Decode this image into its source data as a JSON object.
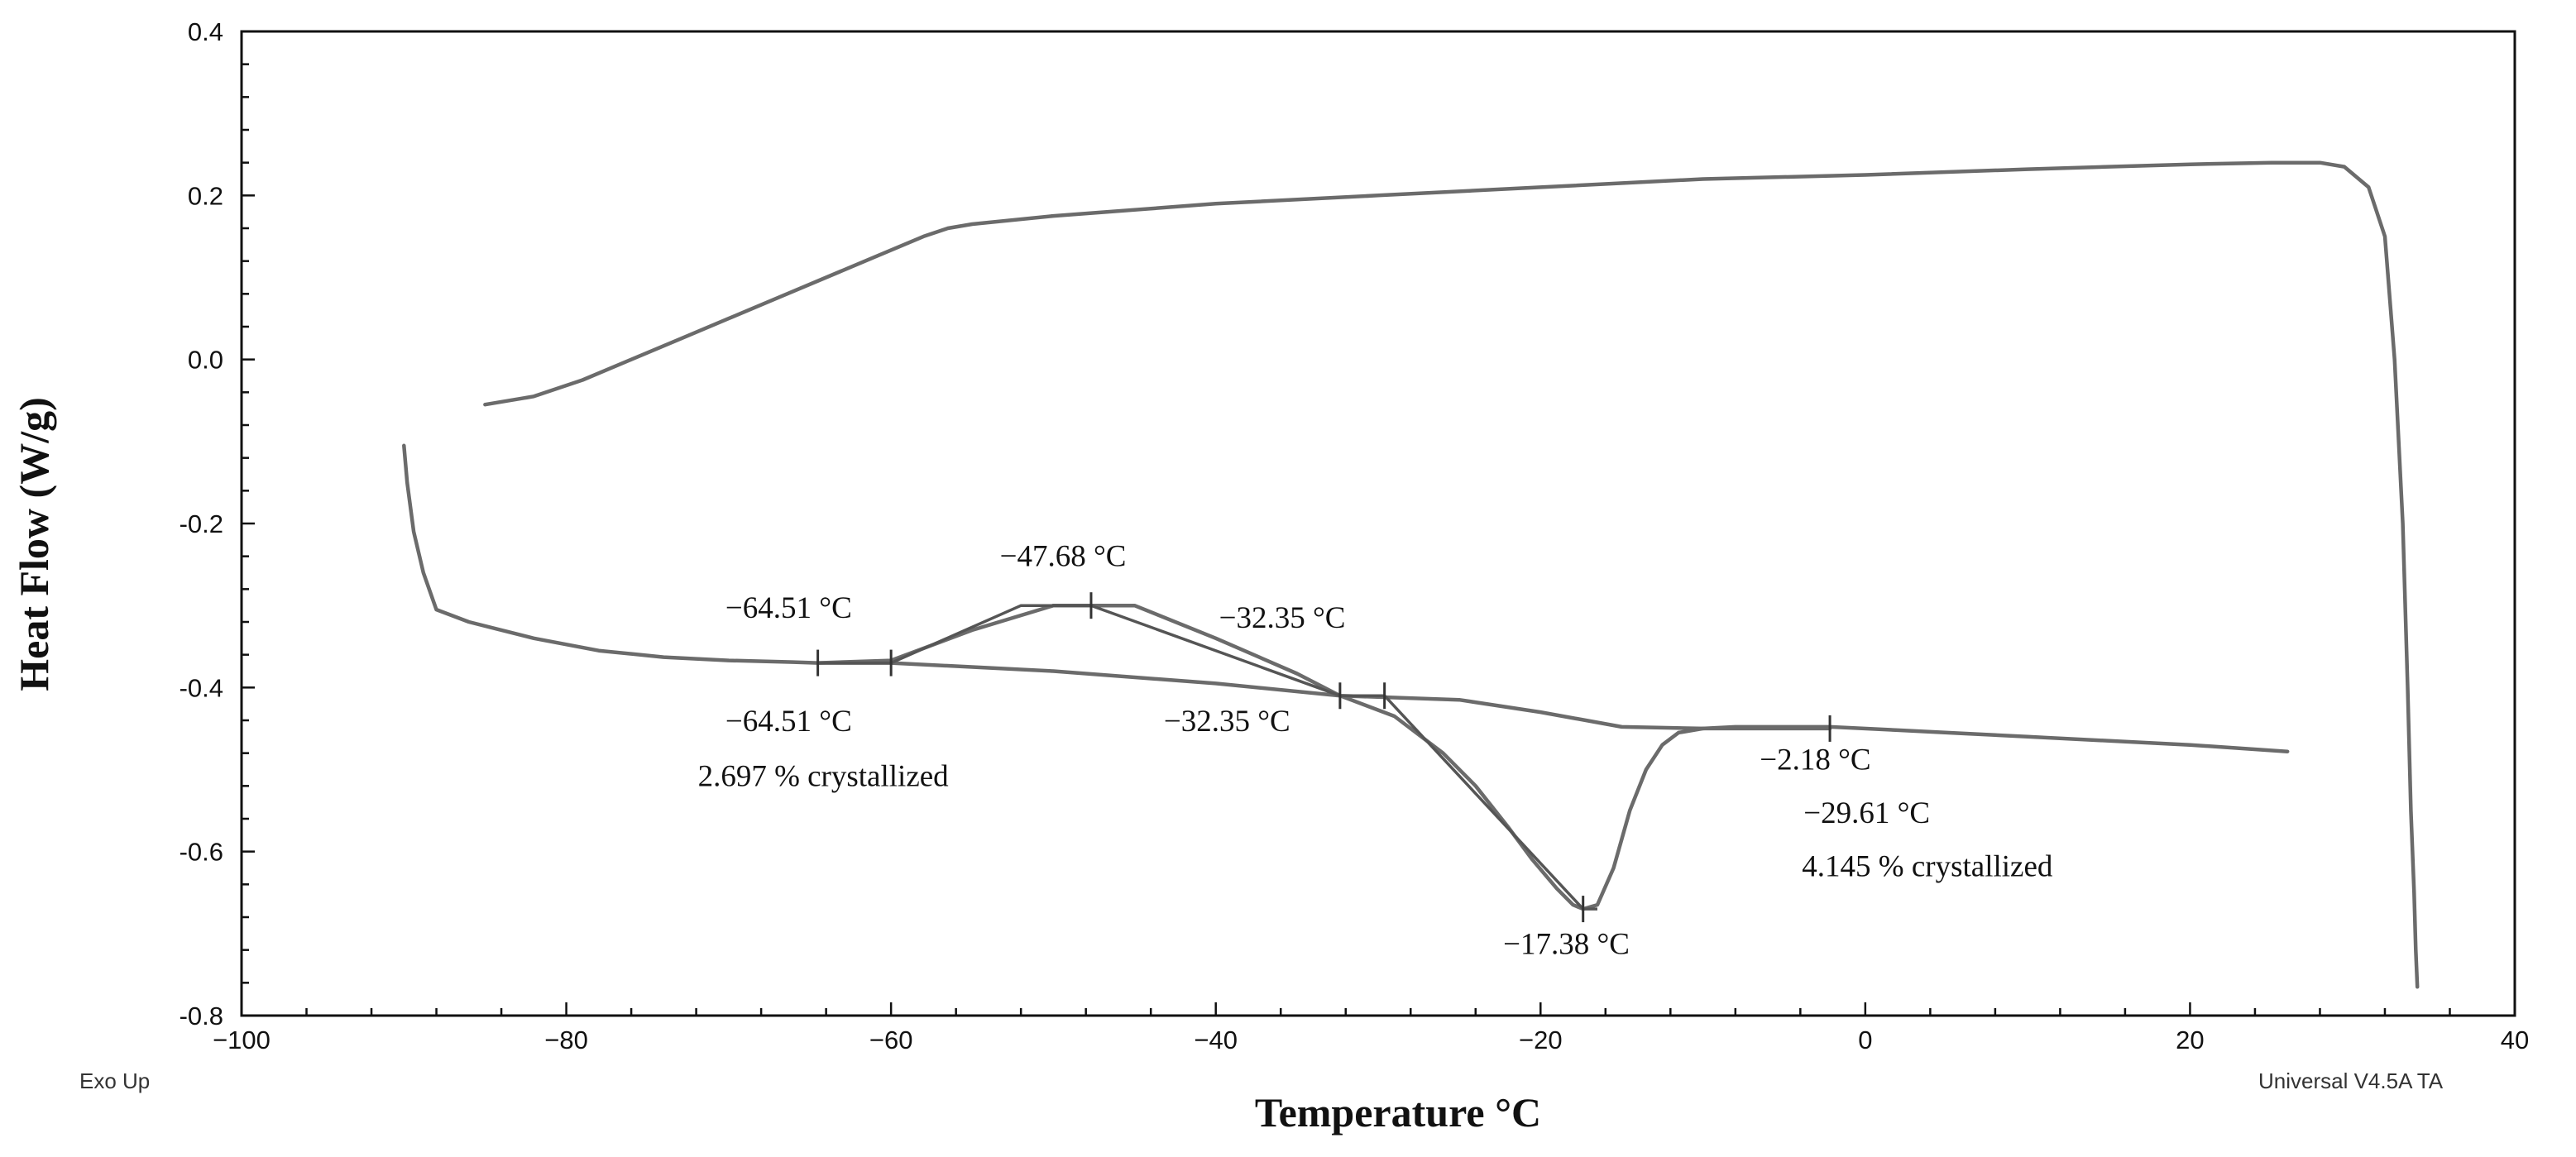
{
  "chart_data": {
    "type": "line",
    "title": "",
    "xlabel": "Temperature °C",
    "ylabel": "Heat Flow (W/g)",
    "xlim": [
      -100,
      40
    ],
    "ylim": [
      -0.8,
      0.4
    ],
    "x_ticks": [
      "−100",
      "−80",
      "−60",
      "−40",
      "−20",
      "0",
      "20",
      "40"
    ],
    "x_tick_values": [
      -100,
      -80,
      -60,
      -40,
      -20,
      0,
      20,
      40
    ],
    "y_ticks": [
      "0.4",
      "0.2",
      "0.0",
      "-0.2",
      "-0.4",
      "-0.6",
      "-0.8"
    ],
    "y_tick_values": [
      0.4,
      0.2,
      0.0,
      -0.2,
      -0.4,
      -0.6,
      -0.8
    ],
    "corner_left": "Exo Up",
    "corner_right": "Universal V4.5A TA",
    "series": [
      {
        "name": "cooling curve",
        "x": [
          -85,
          -82,
          -79,
          -76,
          -73,
          -70,
          -67,
          -64,
          -61,
          -58,
          -56.5,
          -55,
          -50,
          -40,
          -30,
          -20,
          -10,
          0,
          10,
          20,
          25,
          28,
          29.5,
          31,
          32,
          32.6,
          33.1,
          33.4,
          33.6,
          33.8,
          33.9,
          34.0
        ],
        "values": [
          -0.055,
          -0.045,
          -0.025,
          0.0,
          0.025,
          0.05,
          0.075,
          0.1,
          0.125,
          0.15,
          0.16,
          0.165,
          0.175,
          0.19,
          0.2,
          0.21,
          0.22,
          0.225,
          0.232,
          0.238,
          0.24,
          0.24,
          0.235,
          0.21,
          0.15,
          0.0,
          -0.2,
          -0.4,
          -0.55,
          -0.65,
          -0.72,
          -0.765
        ]
      },
      {
        "name": "heating curve",
        "x": [
          -90,
          -89.8,
          -89.4,
          -88.8,
          -88,
          -86,
          -82,
          -78,
          -74,
          -70,
          -66,
          -64.51,
          -60,
          -55,
          -50,
          -45,
          -40,
          -35,
          -32.35,
          -29,
          -26,
          -24,
          -22,
          -20.5,
          -19,
          -18,
          -17.38,
          -16.5,
          -15.5,
          -14.5,
          -13.5,
          -12.5,
          -11.5,
          -10,
          -8,
          -5,
          -2.18,
          2,
          10,
          20,
          26
        ],
        "values": [
          -0.105,
          -0.15,
          -0.21,
          -0.26,
          -0.305,
          -0.32,
          -0.34,
          -0.355,
          -0.363,
          -0.367,
          -0.369,
          -0.37,
          -0.367,
          -0.33,
          -0.3,
          -0.3,
          -0.34,
          -0.383,
          -0.41,
          -0.435,
          -0.48,
          -0.52,
          -0.57,
          -0.61,
          -0.645,
          -0.665,
          -0.67,
          -0.665,
          -0.62,
          -0.55,
          -0.5,
          -0.47,
          -0.455,
          -0.45,
          -0.448,
          -0.448,
          -0.448,
          -0.452,
          -0.46,
          -0.47,
          -0.478
        ]
      },
      {
        "name": "baseline",
        "x": [
          -64.51,
          -60,
          -50,
          -40,
          -32.35,
          -25,
          -20,
          -15,
          -10,
          -2.18
        ],
        "values": [
          -0.37,
          -0.37,
          -0.38,
          -0.395,
          -0.41,
          -0.415,
          -0.43,
          -0.448,
          -0.45,
          -0.45
        ]
      }
    ],
    "construction_lines": [
      {
        "x": [
          -64.51,
          -60,
          -52,
          -47.68,
          -32.35
        ],
        "values": [
          -0.37,
          -0.37,
          -0.3,
          -0.3,
          -0.41
        ]
      },
      {
        "x": [
          -32.35,
          -29.61,
          -17.38,
          -16.5
        ],
        "values": [
          -0.41,
          -0.41,
          -0.67,
          -0.67
        ]
      }
    ],
    "markers": [
      {
        "x": -64.51,
        "y": -0.37
      },
      {
        "x": -60,
        "y": -0.37
      },
      {
        "x": -47.68,
        "y": -0.3
      },
      {
        "x": -32.35,
        "y": -0.41
      },
      {
        "x": -29.61,
        "y": -0.41
      },
      {
        "x": -17.38,
        "y": -0.67
      },
      {
        "x": -2.18,
        "y": -0.45
      }
    ],
    "annotations": [
      {
        "text": "−64.51 °C",
        "x": -70.2,
        "y": -0.315
      },
      {
        "text": "−47.68 °C",
        "x": -53.3,
        "y": -0.252
      },
      {
        "text": "−32.35 °C",
        "x": -39.8,
        "y": -0.327
      },
      {
        "text": "−64.51 °C",
        "x": -70.2,
        "y": -0.453
      },
      {
        "text": "2.697 % crystallized",
        "x": -71.9,
        "y": -0.52
      },
      {
        "text": "−32.35 °C",
        "x": -43.2,
        "y": -0.453
      },
      {
        "text": "−2.18 °C",
        "x": -6.5,
        "y": -0.5
      },
      {
        "text": "−29.61 °C",
        "x": -3.8,
        "y": -0.565
      },
      {
        "text": "4.145 % crystallized",
        "x": -3.9,
        "y": -0.63
      },
      {
        "text": "−17.38 °C",
        "x": -22.3,
        "y": -0.725
      }
    ]
  }
}
